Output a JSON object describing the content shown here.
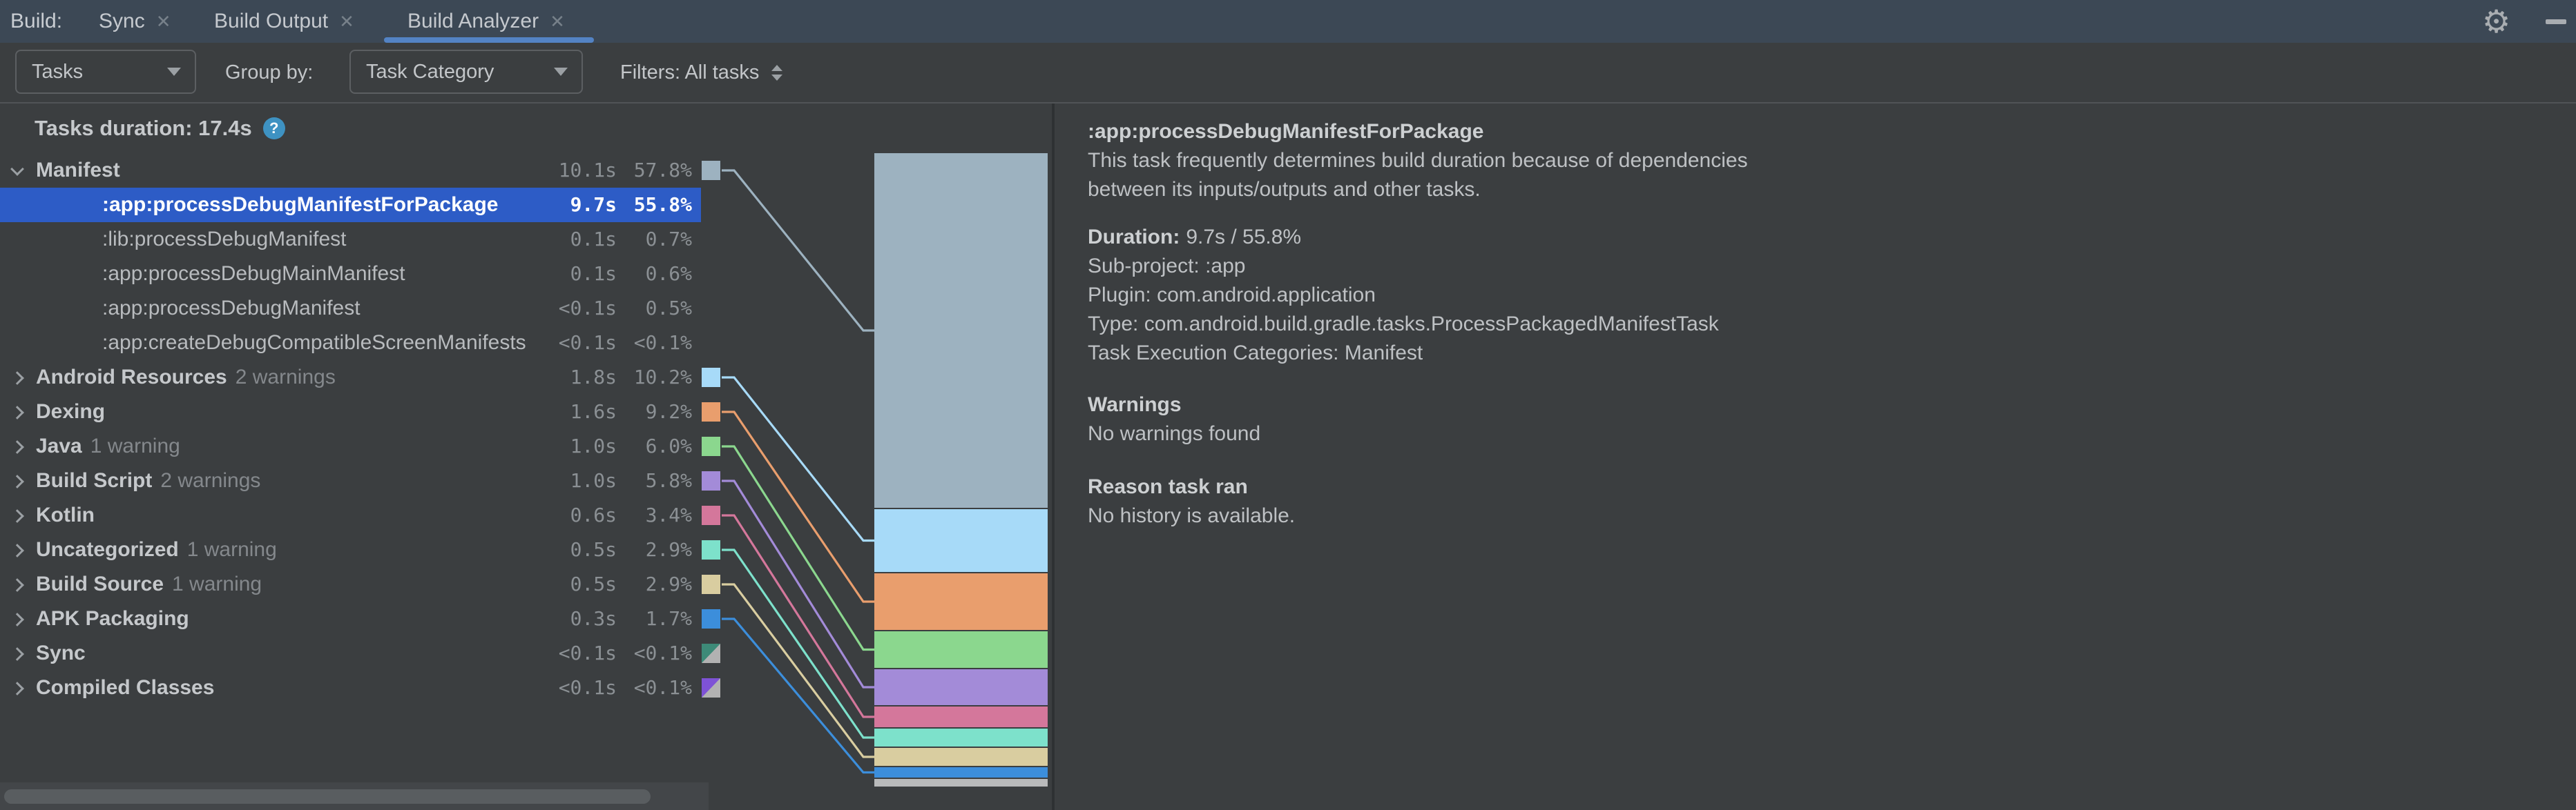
{
  "icons": {
    "close": "✕",
    "gear": "⚙",
    "help": "?"
  },
  "colors": {
    "tabbar_bg": "#3c4855",
    "panel_bg": "#3b3e40",
    "selection": "#2d5cc6",
    "tab_underline": "#5383c4",
    "help_badge": "#3e92c2",
    "chip_split_gray": "#b2b2b2"
  },
  "tabbar": {
    "prefix": "Build:",
    "tabs": [
      {
        "label": "Sync",
        "active": false
      },
      {
        "label": "Build Output",
        "active": false
      },
      {
        "label": "Build Analyzer",
        "active": true
      }
    ]
  },
  "toolbar": {
    "view_select": "Tasks",
    "group_by_label": "Group by:",
    "group_select": "Task Category",
    "filters_label": "Filters: All tasks"
  },
  "header": {
    "title": "Tasks duration: 17.4s"
  },
  "tree": {
    "rows": [
      {
        "kind": "category",
        "label": "Manifest",
        "duration": "10.1s",
        "pct": "57.8%",
        "expanded": true,
        "chip": {
          "color": "#9db2c0"
        }
      },
      {
        "kind": "task",
        "label": ":app:processDebugManifestForPackage",
        "duration": "9.7s",
        "pct": "55.8%",
        "selected": true
      },
      {
        "kind": "task",
        "label": ":lib:processDebugManifest",
        "duration": "0.1s",
        "pct": "0.7%"
      },
      {
        "kind": "task",
        "label": ":app:processDebugMainManifest",
        "duration": "0.1s",
        "pct": "0.6%"
      },
      {
        "kind": "task",
        "label": ":app:processDebugManifest",
        "duration": "<0.1s",
        "pct": "0.5%"
      },
      {
        "kind": "task",
        "label": ":app:createDebugCompatibleScreenManifests",
        "duration": "<0.1s",
        "pct": "<0.1%"
      },
      {
        "kind": "category",
        "label": "Android Resources",
        "suffix": "2 warnings",
        "duration": "1.8s",
        "pct": "10.2%",
        "chip": {
          "color": "#a7daf8"
        }
      },
      {
        "kind": "category",
        "label": "Dexing",
        "duration": "1.6s",
        "pct": "9.2%",
        "chip": {
          "color": "#e99e6d"
        }
      },
      {
        "kind": "category",
        "label": "Java",
        "suffix": "1 warning",
        "duration": "1.0s",
        "pct": "6.0%",
        "chip": {
          "color": "#8bd78e"
        }
      },
      {
        "kind": "category",
        "label": "Build Script",
        "suffix": "2 warnings",
        "duration": "1.0s",
        "pct": "5.8%",
        "chip": {
          "color": "#a38bd8"
        }
      },
      {
        "kind": "category",
        "label": "Kotlin",
        "duration": "0.6s",
        "pct": "3.4%",
        "chip": {
          "color": "#d4779b"
        }
      },
      {
        "kind": "category",
        "label": "Uncategorized",
        "suffix": "1 warning",
        "duration": "0.5s",
        "pct": "2.9%",
        "chip": {
          "color": "#7de1cb"
        }
      },
      {
        "kind": "category",
        "label": "Build Source",
        "suffix": "1 warning",
        "duration": "0.5s",
        "pct": "2.9%",
        "chip": {
          "color": "#d9cda0"
        }
      },
      {
        "kind": "category",
        "label": "APK Packaging",
        "duration": "0.3s",
        "pct": "1.7%",
        "chip": {
          "color": "#3c8edb"
        }
      },
      {
        "kind": "category",
        "label": "Sync",
        "duration": "<0.1s",
        "pct": "<0.1%",
        "chip": {
          "color": "#3d8a78",
          "split": true
        }
      },
      {
        "kind": "category",
        "label": "Compiled Classes",
        "duration": "<0.1s",
        "pct": "<0.1%",
        "chip": {
          "color": "#7e52d6",
          "split": true
        }
      }
    ]
  },
  "chart_data": {
    "type": "bar",
    "title": "Tasks duration: 17.4s",
    "total_duration_s": 17.4,
    "orientation": "vertical-stacked",
    "categories": [
      "Manifest",
      "Android Resources",
      "Dexing",
      "Java",
      "Build Script",
      "Kotlin",
      "Uncategorized",
      "Build Source",
      "APK Packaging",
      "remainder"
    ],
    "values_pct": [
      57.8,
      10.2,
      9.2,
      6.0,
      5.8,
      3.4,
      2.9,
      2.9,
      1.7,
      1.2
    ],
    "values_seconds": [
      10.1,
      1.8,
      1.6,
      1.0,
      1.0,
      0.6,
      0.5,
      0.5,
      0.3,
      0.1
    ],
    "segments": [
      {
        "label": "Manifest",
        "pct": 57.8,
        "color": "#9db2c0",
        "line": true
      },
      {
        "label": "Android Resources",
        "pct": 10.2,
        "color": "#a7daf8",
        "line": true
      },
      {
        "label": "Dexing",
        "pct": 9.2,
        "color": "#e99e6d",
        "line": true
      },
      {
        "label": "Java",
        "pct": 6.0,
        "color": "#8bd78e",
        "line": true
      },
      {
        "label": "Build Script",
        "pct": 5.8,
        "color": "#a38bd8",
        "line": true
      },
      {
        "label": "Kotlin",
        "pct": 3.4,
        "color": "#d4779b",
        "line": true
      },
      {
        "label": "Uncategorized",
        "pct": 2.9,
        "color": "#7de1cb",
        "line": true
      },
      {
        "label": "Build Source",
        "pct": 2.9,
        "color": "#d9cda0",
        "line": true
      },
      {
        "label": "APK Packaging",
        "pct": 1.7,
        "color": "#3c8edb",
        "line": true
      },
      {
        "label": "remainder",
        "pct": 1.2,
        "color": "#b9babb",
        "line": false
      }
    ]
  },
  "details": {
    "title": ":app:processDebugManifestForPackage",
    "desc": [
      "This task frequently determines build duration because of dependencies",
      "between its inputs/outputs and other tasks."
    ],
    "duration_label": "Duration:",
    "duration_value": "9.7s / 55.8%",
    "subproject": "Sub-project: :app",
    "plugin": "Plugin: com.android.application",
    "type": "Type: com.android.build.gradle.tasks.ProcessPackagedManifestTask",
    "categories": "Task Execution Categories: Manifest",
    "warnings_header": "Warnings",
    "warnings_body": "No warnings found",
    "reason_header": "Reason task ran",
    "reason_body": "No history is available."
  }
}
